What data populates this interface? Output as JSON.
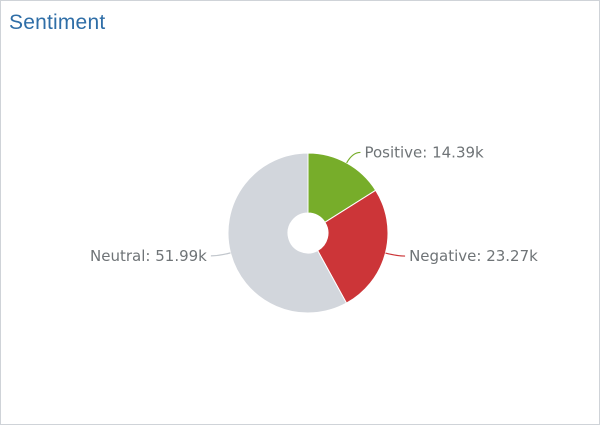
{
  "panel": {
    "title": "Sentiment"
  },
  "chart_data": {
    "type": "pie",
    "style": "donut",
    "title": "Sentiment",
    "categories": [
      "Positive",
      "Negative",
      "Neutral"
    ],
    "values": [
      14.39,
      23.27,
      51.99
    ],
    "unit": "k",
    "labels": [
      "Positive: 14.39k",
      "Negative: 23.27k",
      "Neutral: 51.99k"
    ],
    "colors": [
      "#77ad2a",
      "#cc3538",
      "#d2d6dc"
    ],
    "legend": "none",
    "data_labels": "outside with connector lines"
  }
}
